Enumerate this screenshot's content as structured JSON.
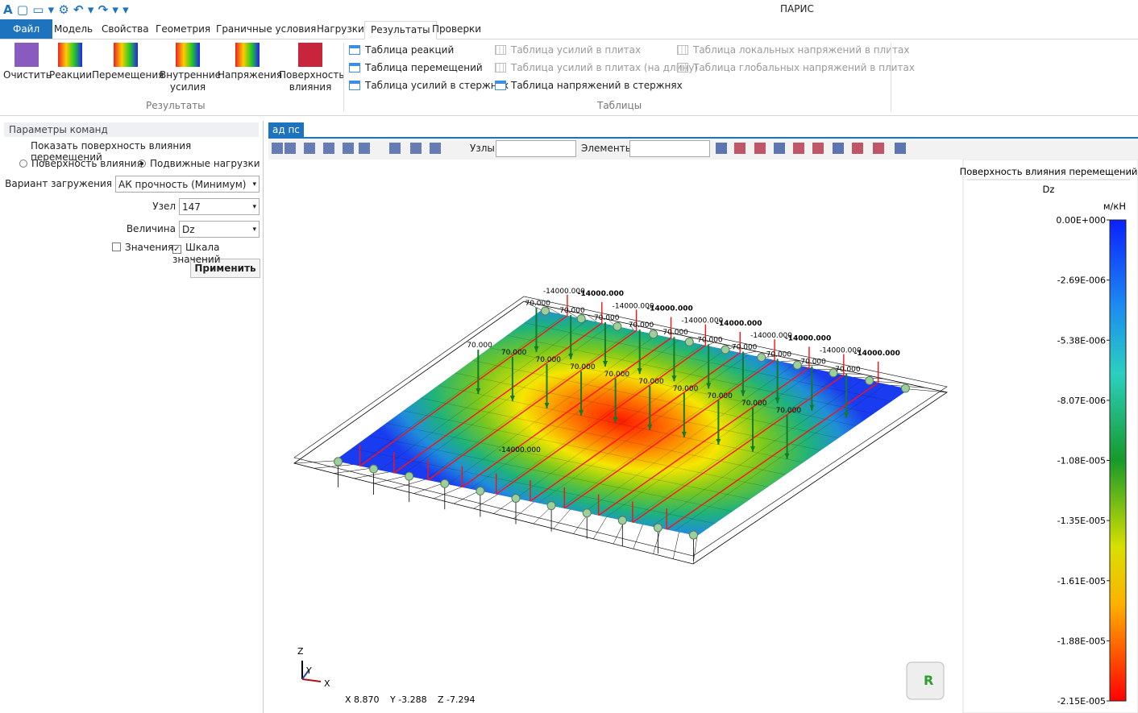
{
  "app_title": "ПАРИС",
  "menu_tabs": [
    "Файл",
    "Модель",
    "Свойства",
    "Геометрия",
    "Граничные условия",
    "Нагрузки",
    "Результаты",
    "Проверки"
  ],
  "ribbon": {
    "results_buttons": [
      "Очистить",
      "Реакции",
      "Перемещения",
      "Внутренние усилия",
      "Напряжения",
      "Поверхность влияния"
    ],
    "results_group": "Результаты",
    "tables": [
      {
        "label": "Таблица реакций",
        "enabled": true
      },
      {
        "label": "Таблица перемещений",
        "enabled": true
      },
      {
        "label": "Таблица усилий в стержнях",
        "enabled": true
      },
      {
        "label": "Таблица усилий в плитах",
        "enabled": false
      },
      {
        "label": "Таблица усилий в плитах (на длину)",
        "enabled": false
      },
      {
        "label": "Таблица напряжений в стержнях",
        "enabled": true
      },
      {
        "label": "Таблица локальных напряжений в плитах",
        "enabled": false
      },
      {
        "label": "Таблица глобальных напряжений в плитах",
        "enabled": false
      }
    ],
    "tables_group": "Таблицы"
  },
  "panel": {
    "title": "Параметры команд",
    "heading": "Показать поверхность влияния перемещений",
    "radios": [
      {
        "label": "Поверхность влияния",
        "checked": false
      },
      {
        "label": "Подвижные нагрузки",
        "checked": true
      }
    ],
    "fields": [
      {
        "label": "Вариант загружения",
        "value": "АК прочность (Минимум)"
      },
      {
        "label": "Узел",
        "value": "147"
      },
      {
        "label": "Величина",
        "value": "Dz"
      }
    ],
    "checkboxes": [
      {
        "label": "Значения",
        "checked": false
      },
      {
        "label": "Шкала значений",
        "checked": true
      }
    ],
    "button": "Применить"
  },
  "view": {
    "tab": "ад пс",
    "toolbar_fields": [
      "Узлы",
      "Элементы"
    ],
    "legend": {
      "title": "Поверхность влияния перемещений",
      "quantity": "Dz",
      "unit": "м/кН",
      "ticks": [
        "0.00E+000",
        "-2.69E-006",
        "-5.38E-006",
        "-8.07E-006",
        "-1.08E-005",
        "-1.35E-005",
        "-1.61E-005",
        "-1.88E-005",
        "-2.15E-005"
      ]
    },
    "line_load_labels": [
      "-14000.000",
      "-14000.000",
      "-14000.000",
      "-14000.000",
      "-14000.000",
      "-14000.000",
      "-14000.000",
      "-14000.000",
      "-14000.000",
      "-14000.000",
      "-14000.000"
    ],
    "point_load_labels": [
      "70.000",
      "70.000",
      "70.000",
      "70.000",
      "70.000",
      "70.000",
      "70.000",
      "70.000",
      "70.000",
      "70.000",
      "70.000",
      "70.000",
      "70.000",
      "70.000",
      "70.000",
      "70.000",
      "70.000",
      "70.000",
      "70.000",
      "70.000"
    ],
    "axes": [
      "Z",
      "Y",
      "X"
    ],
    "coords": [
      "X 8.870",
      "Y -3.288",
      "Z -7.294"
    ]
  }
}
